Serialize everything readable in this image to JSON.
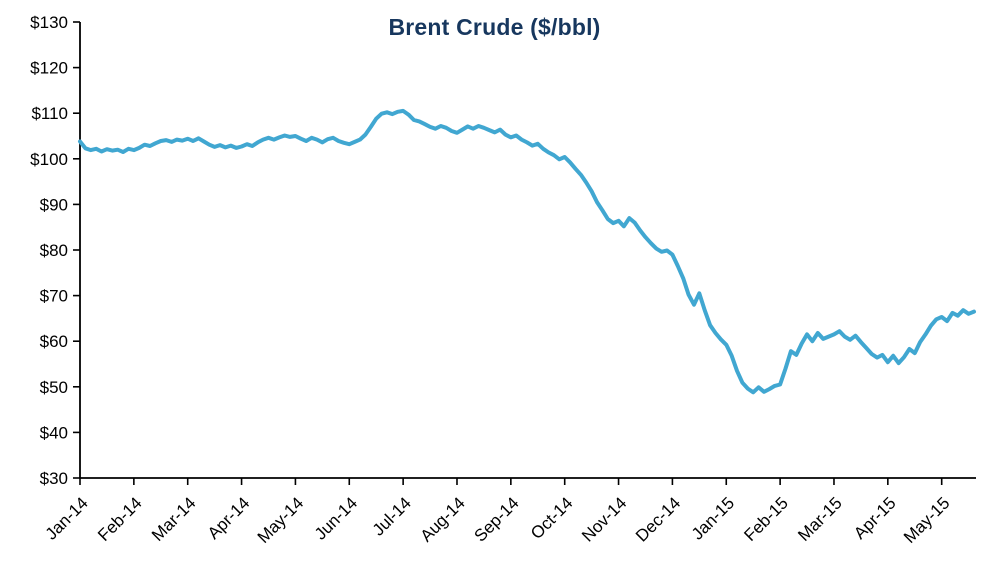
{
  "chart_data": {
    "type": "line",
    "title": "Brent Crude ($/bbl)",
    "xlabel": "",
    "ylabel": "",
    "ylim": [
      30,
      130
    ],
    "grid": false,
    "legend": "none",
    "y_tick_prefix": "$",
    "y_ticks": [
      30,
      40,
      50,
      60,
      70,
      80,
      90,
      100,
      110,
      120,
      130
    ],
    "x_tick_labels": [
      "Jan-14",
      "Feb-14",
      "Mar-14",
      "Apr-14",
      "May-14",
      "Jun-14",
      "Jul-14",
      "Aug-14",
      "Sep-14",
      "Oct-14",
      "Nov-14",
      "Dec-14",
      "Jan-15",
      "Feb-15",
      "Mar-15",
      "Apr-15",
      "May-15"
    ],
    "points_per_month": 10,
    "colors": {
      "line": "#41A7D1",
      "title": "#17375E",
      "axis": "#000000"
    },
    "series": [
      {
        "name": "Brent Crude ($/bbl)",
        "values": [
          103.8,
          102.3,
          101.9,
          102.2,
          101.6,
          102.1,
          101.8,
          102.0,
          101.5,
          102.2,
          101.9,
          102.4,
          103.1,
          102.8,
          103.4,
          103.9,
          104.1,
          103.7,
          104.2,
          104.0,
          104.4,
          103.9,
          104.5,
          103.8,
          103.1,
          102.6,
          103.0,
          102.5,
          102.9,
          102.4,
          102.7,
          103.2,
          102.8,
          103.6,
          104.2,
          104.6,
          104.2,
          104.7,
          105.1,
          104.8,
          105.0,
          104.4,
          103.9,
          104.6,
          104.2,
          103.6,
          104.3,
          104.6,
          103.9,
          103.5,
          103.2,
          103.7,
          104.2,
          105.3,
          107.0,
          108.8,
          109.9,
          110.2,
          109.8,
          110.3,
          110.5,
          109.7,
          108.5,
          108.2,
          107.6,
          107.0,
          106.6,
          107.2,
          106.8,
          106.1,
          105.7,
          106.4,
          107.1,
          106.6,
          107.2,
          106.8,
          106.3,
          105.8,
          106.4,
          105.3,
          104.7,
          105.1,
          104.2,
          103.6,
          102.9,
          103.3,
          102.2,
          101.4,
          100.8,
          99.9,
          100.4,
          99.2,
          97.8,
          96.5,
          94.8,
          92.9,
          90.5,
          88.7,
          86.8,
          85.9,
          86.4,
          85.2,
          87.0,
          86.0,
          84.3,
          82.8,
          81.5,
          80.3,
          79.6,
          79.9,
          79.0,
          76.5,
          73.8,
          70.2,
          68.0,
          70.5,
          66.8,
          63.5,
          61.8,
          60.4,
          59.2,
          56.8,
          53.5,
          50.9,
          49.6,
          48.8,
          49.9,
          48.9,
          49.5,
          50.2,
          50.5,
          54.0,
          57.8,
          57.0,
          59.5,
          61.5,
          60.0,
          61.8,
          60.5,
          61.0,
          61.5,
          62.2,
          61.0,
          60.3,
          61.2,
          59.8,
          58.5,
          57.2,
          56.4,
          57.0,
          55.4,
          56.8,
          55.2,
          56.5,
          58.3,
          57.4,
          59.8,
          61.5,
          63.4,
          64.8,
          65.3,
          64.4,
          66.2,
          65.6,
          66.8,
          66.0,
          66.5
        ]
      }
    ]
  }
}
